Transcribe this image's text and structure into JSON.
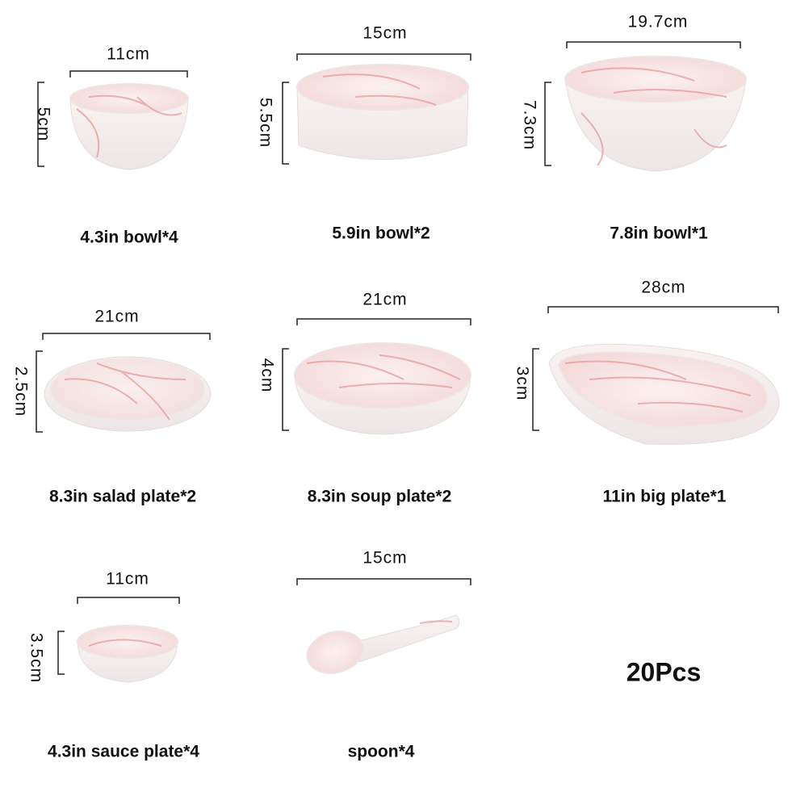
{
  "items": [
    {
      "name": "4.3in bowl*4",
      "width": "11cm",
      "height": "5cm"
    },
    {
      "name": "5.9in bowl*2",
      "width": "15cm",
      "height": "5.5cm"
    },
    {
      "name": "7.8in bowl*1",
      "width": "19.7cm",
      "height": "7.3cm"
    },
    {
      "name": "8.3in salad plate*2",
      "width": "21cm",
      "height": "2.5cm"
    },
    {
      "name": "8.3in soup plate*2",
      "width": "21cm",
      "height": "4cm"
    },
    {
      "name": "11in big plate*1",
      "width": "28cm",
      "height": "3cm"
    },
    {
      "name": "4.3in sauce plate*4",
      "width": "11cm",
      "height": "3.5cm"
    },
    {
      "name": "spoon*4",
      "width": "15cm"
    }
  ],
  "total": "20Pcs"
}
